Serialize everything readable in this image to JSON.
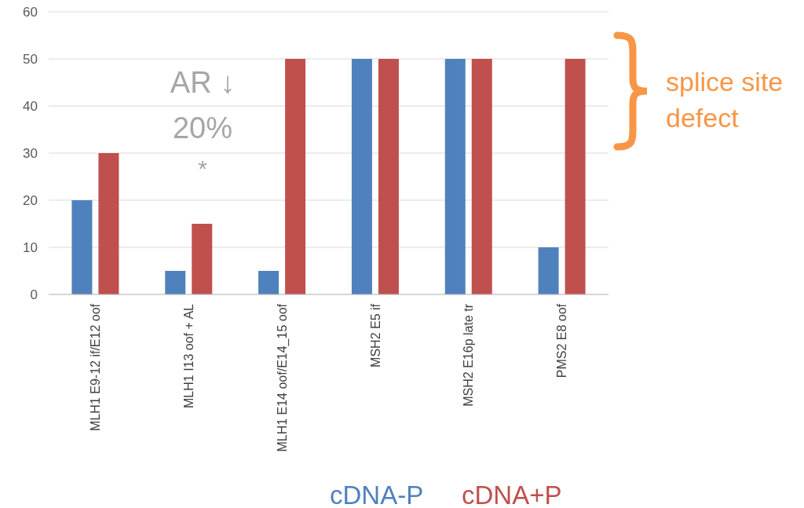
{
  "chart_data": {
    "type": "bar",
    "categories": [
      "MLH1 E9-12 if/E12 oof",
      "MLH1 I13 oof + AL",
      "MLH1 E14 oof/E14_15 oof",
      "MSH2 E5 if",
      "MSH2 E16p late tr",
      "PMS2 E8 oof"
    ],
    "series": [
      {
        "name": "cDNA-P",
        "color": "#4f81bd",
        "values": [
          20,
          5,
          5,
          50,
          50,
          10
        ]
      },
      {
        "name": "cDNA+P",
        "color": "#c0504d",
        "values": [
          30,
          15,
          50,
          50,
          50,
          50
        ]
      }
    ],
    "ylim": [
      0,
      60
    ],
    "yticks": [
      0,
      10,
      20,
      30,
      40,
      50,
      60
    ],
    "grid": "y",
    "legend": "bottom",
    "annotations": [
      "AR ↓",
      "20%",
      "*",
      "splice site defect"
    ]
  }
}
